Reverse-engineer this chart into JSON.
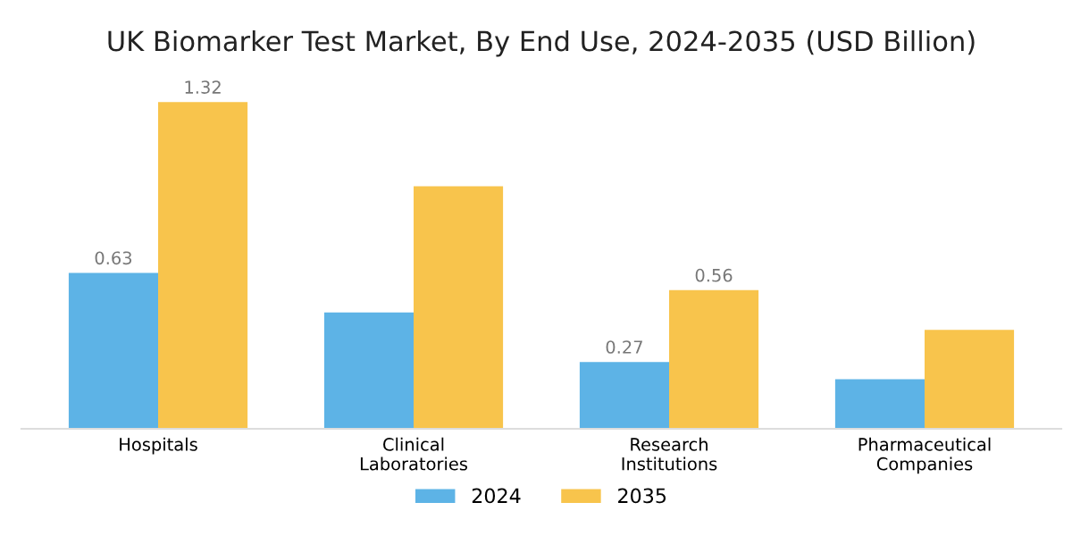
{
  "chart_data": {
    "type": "bar",
    "title": "UK Biomarker Test Market, By End Use, 2024-2035 (USD Billion)",
    "categories": [
      "Hospitals",
      "Clinical\nLaboratories",
      "Research\nInstitutions",
      "Pharmaceutical\nCompanies"
    ],
    "series": [
      {
        "name": "2024",
        "color": "#5db3e6",
        "values": [
          0.63,
          0.47,
          0.27,
          0.2
        ],
        "value_labels": [
          "0.63",
          null,
          "0.27",
          null
        ]
      },
      {
        "name": "2035",
        "color": "#f8c44c",
        "values": [
          1.32,
          0.98,
          0.56,
          0.4
        ],
        "value_labels": [
          "1.32",
          null,
          "0.56",
          null
        ]
      }
    ],
    "tick_labels": "x",
    "legend": "bottom",
    "grid": false
  }
}
